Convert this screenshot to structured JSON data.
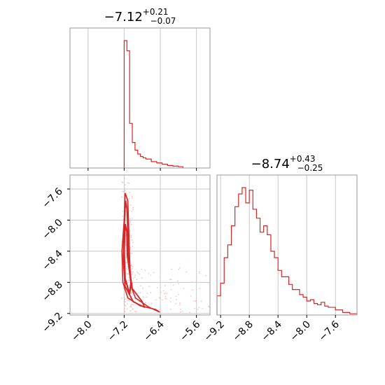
{
  "chart_data": [
    {
      "type": "histogram",
      "panel": "top-left",
      "title_value": "−7.12",
      "title_upper": "+0.21",
      "title_lower": "−0.07",
      "xlim": [
        -8.4,
        -5.3
      ],
      "grid": true,
      "color": "#d62728",
      "x_edges": [
        -7.2,
        -7.14,
        -7.08,
        -7.02,
        -6.96,
        -6.9,
        -6.84,
        -6.78,
        -6.72,
        -6.6,
        -6.48,
        -6.36,
        -6.24,
        -6.12,
        -6.0,
        -5.9
      ],
      "values": [
        1.0,
        0.92,
        0.35,
        0.2,
        0.14,
        0.11,
        0.09,
        0.08,
        0.07,
        0.05,
        0.04,
        0.03,
        0.02,
        0.015,
        0.01
      ]
    },
    {
      "type": "histogram",
      "panel": "bottom-right",
      "title_value": "−8.74",
      "title_upper": "+0.43",
      "title_lower": "−0.25",
      "xlim": [
        -9.25,
        -7.3
      ],
      "grid": true,
      "color": "#d62728",
      "x_ticks": [
        "−9.2",
        "−8.8",
        "−8.4",
        "−8.0",
        "−7.6"
      ],
      "x_edges": [
        -9.25,
        -9.2,
        -9.15,
        -9.1,
        -9.05,
        -9.0,
        -8.95,
        -8.9,
        -8.85,
        -8.8,
        -8.75,
        -8.7,
        -8.65,
        -8.6,
        -8.55,
        -8.5,
        -8.45,
        -8.4,
        -8.35,
        -8.3,
        -8.25,
        -8.2,
        -8.15,
        -8.1,
        -8.05,
        -8.0,
        -7.95,
        -7.9,
        -7.85,
        -7.8,
        -7.75,
        -7.7,
        -7.65,
        -7.6,
        -7.55,
        -7.5,
        -7.45,
        -7.4,
        -7.35,
        -7.3
      ],
      "values": [
        0.15,
        0.25,
        0.45,
        0.55,
        0.7,
        0.85,
        0.95,
        1.0,
        0.88,
        0.98,
        0.83,
        0.76,
        0.65,
        0.7,
        0.63,
        0.5,
        0.45,
        0.35,
        0.3,
        0.3,
        0.24,
        0.2,
        0.2,
        0.16,
        0.14,
        0.11,
        0.12,
        0.09,
        0.08,
        0.1,
        0.07,
        0.06,
        0.06,
        0.04,
        0.04,
        0.02,
        0.02,
        0.01,
        0.01
      ]
    },
    {
      "type": "contour-scatter",
      "panel": "bottom-left",
      "xlim": [
        -8.4,
        -5.3
      ],
      "ylim": [
        -9.22,
        -7.42
      ],
      "x_ticks": [
        "−8.0",
        "−7.2",
        "−6.4",
        "−5.6"
      ],
      "y_ticks": [
        "−7.6",
        "−8.0",
        "−8.4",
        "−8.8",
        "−9.2"
      ],
      "grid": true,
      "color": "#d62728",
      "scatter_color": "#f4b6b8",
      "contours": [
        {
          "level": "outer",
          "points": [
            [
              -7.18,
              -7.65
            ],
            [
              -7.2,
              -8.0
            ],
            [
              -7.25,
              -8.4
            ],
            [
              -7.23,
              -8.8
            ],
            [
              -7.12,
              -9.0
            ],
            [
              -6.85,
              -9.1
            ],
            [
              -6.5,
              -9.15
            ],
            [
              -6.42,
              -9.18
            ],
            [
              -6.65,
              -9.12
            ],
            [
              -6.95,
              -9.0
            ],
            [
              -7.05,
              -8.85
            ],
            [
              -7.08,
              -8.5
            ],
            [
              -7.1,
              -8.1
            ],
            [
              -7.12,
              -7.75
            ],
            [
              -7.18,
              -7.65
            ]
          ]
        },
        {
          "level": "middle",
          "points": [
            [
              -7.17,
              -7.75
            ],
            [
              -7.2,
              -8.1
            ],
            [
              -7.22,
              -8.5
            ],
            [
              -7.18,
              -8.85
            ],
            [
              -7.0,
              -9.05
            ],
            [
              -6.75,
              -9.12
            ],
            [
              -6.8,
              -9.05
            ],
            [
              -7.02,
              -8.88
            ],
            [
              -7.1,
              -8.55
            ],
            [
              -7.12,
              -8.15
            ],
            [
              -7.14,
              -7.85
            ],
            [
              -7.17,
              -7.75
            ]
          ]
        },
        {
          "level": "inner",
          "points": [
            [
              -7.18,
              -8.05
            ],
            [
              -7.2,
              -8.4
            ],
            [
              -7.18,
              -8.75
            ],
            [
              -7.08,
              -8.95
            ],
            [
              -7.05,
              -8.8
            ],
            [
              -7.13,
              -8.45
            ],
            [
              -7.14,
              -8.15
            ],
            [
              -7.18,
              -8.05
            ]
          ]
        }
      ]
    }
  ]
}
